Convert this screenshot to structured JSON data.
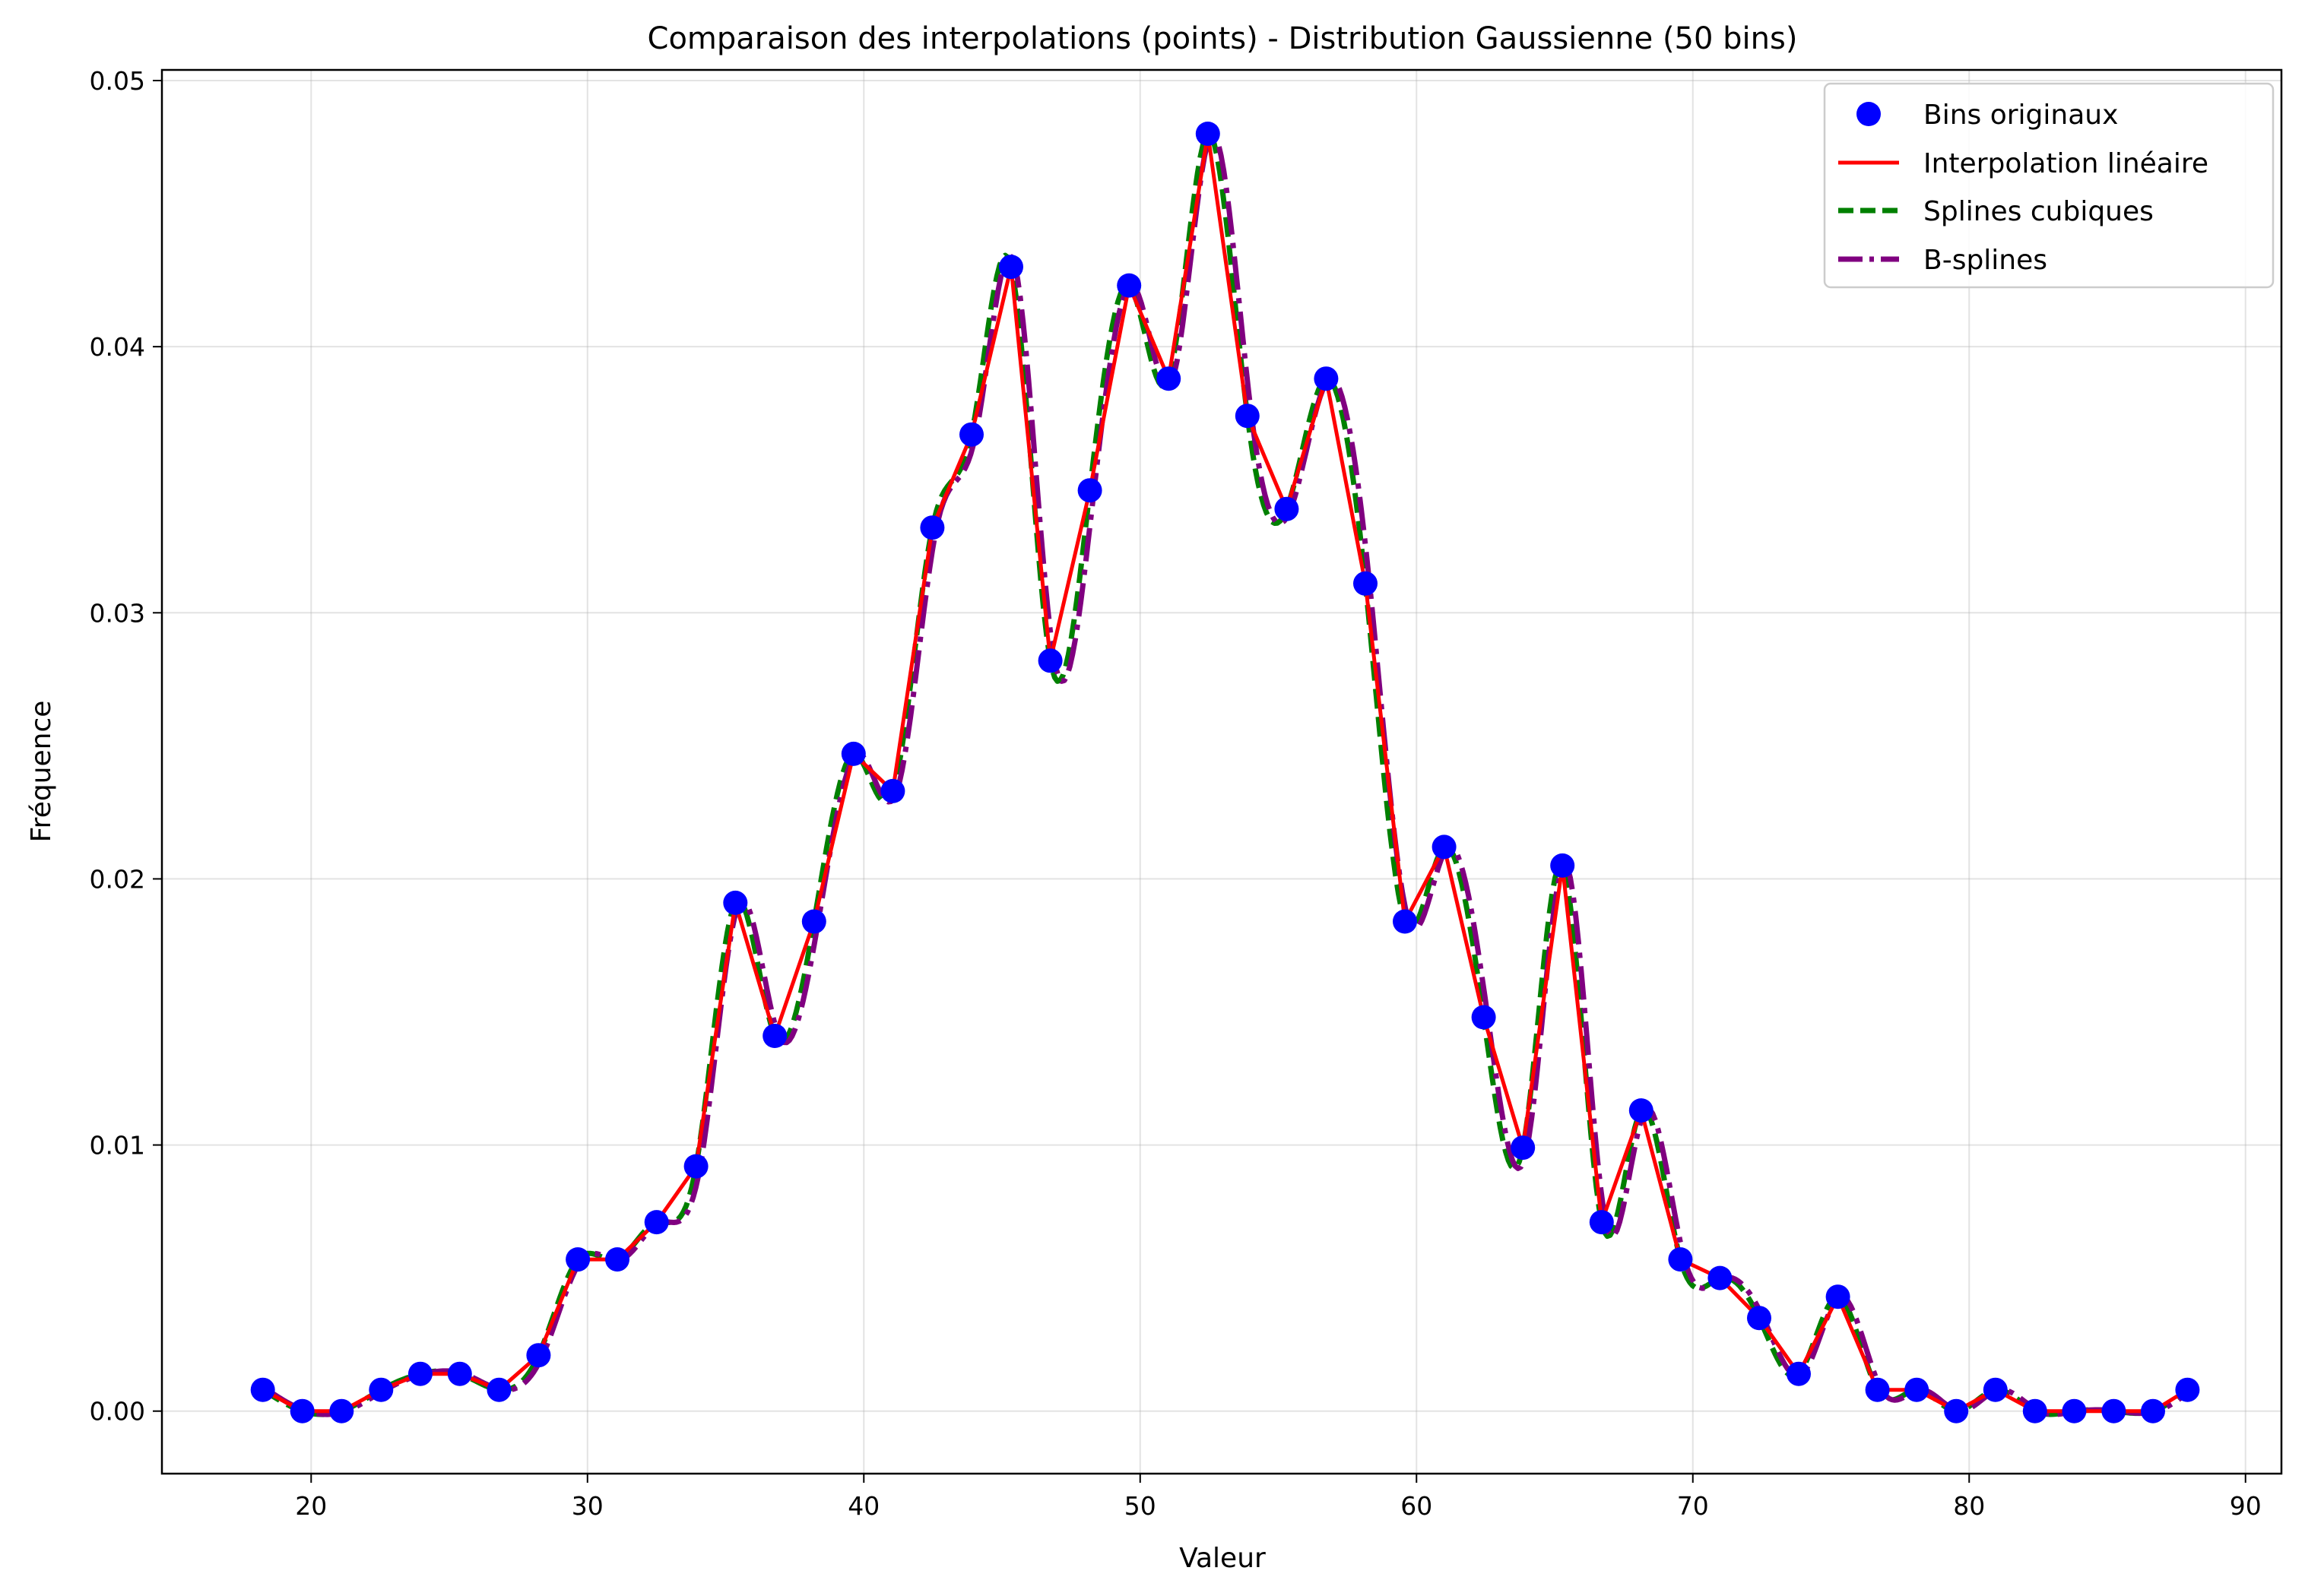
{
  "chart_data": {
    "type": "line",
    "title": "Comparaison des interpolations (points) - Distribution Gaussienne (50 bins)",
    "xlabel": "Valeur",
    "ylabel": "Fréquence",
    "xlim": [
      14.6,
      91.3
    ],
    "ylim": [
      -0.00235,
      0.0504
    ],
    "x_ticks": [
      20,
      30,
      40,
      50,
      60,
      70,
      80,
      90
    ],
    "x_tick_labels": [
      "20",
      "30",
      "40",
      "50",
      "60",
      "70",
      "80",
      "90"
    ],
    "y_ticks": [
      0.0,
      0.01,
      0.02,
      0.03,
      0.04,
      0.05
    ],
    "y_tick_labels": [
      "0.00",
      "0.01",
      "0.02",
      "0.03",
      "0.04",
      "0.05"
    ],
    "grid": true,
    "legend_position": "top-right",
    "x": [
      18.25,
      19.68,
      21.1,
      22.53,
      23.95,
      25.38,
      26.8,
      28.23,
      29.65,
      31.08,
      32.5,
      33.93,
      35.35,
      36.78,
      38.2,
      39.63,
      41.05,
      42.48,
      43.9,
      45.33,
      46.75,
      48.18,
      49.6,
      51.03,
      52.45,
      53.88,
      55.3,
      56.73,
      58.15,
      59.58,
      61.0,
      62.43,
      63.85,
      65.28,
      66.7,
      68.13,
      69.55,
      70.98,
      72.4,
      73.83,
      75.25,
      76.68,
      78.1,
      79.53,
      80.95,
      82.38,
      83.8,
      85.23,
      86.65,
      87.9
    ],
    "series": [
      {
        "name": "Bins originaux",
        "style": "markers",
        "color": "#0000ff",
        "values": [
          0.0008,
          0.0,
          0.0,
          0.0008,
          0.0014,
          0.0014,
          0.0008,
          0.0021,
          0.0057,
          0.0057,
          0.0071,
          0.0092,
          0.0191,
          0.0141,
          0.0184,
          0.0247,
          0.0233,
          0.0332,
          0.0367,
          0.043,
          0.0282,
          0.0346,
          0.0423,
          0.0388,
          0.048,
          0.0374,
          0.0339,
          0.0388,
          0.0311,
          0.0184,
          0.0212,
          0.0148,
          0.0099,
          0.0205,
          0.0071,
          0.0113,
          0.0057,
          0.005,
          0.0035,
          0.0014,
          0.0043,
          0.0008,
          0.0008,
          0.0,
          0.0008,
          0.0,
          0.0,
          0.0,
          0.0,
          0.0008
        ]
      },
      {
        "name": "Interpolation linéaire",
        "style": "solid",
        "color": "#ff0000"
      },
      {
        "name": "Splines cubiques",
        "style": "dashed",
        "color": "#008000"
      },
      {
        "name": "B-splines",
        "style": "dashdot",
        "color": "#800080"
      }
    ]
  }
}
